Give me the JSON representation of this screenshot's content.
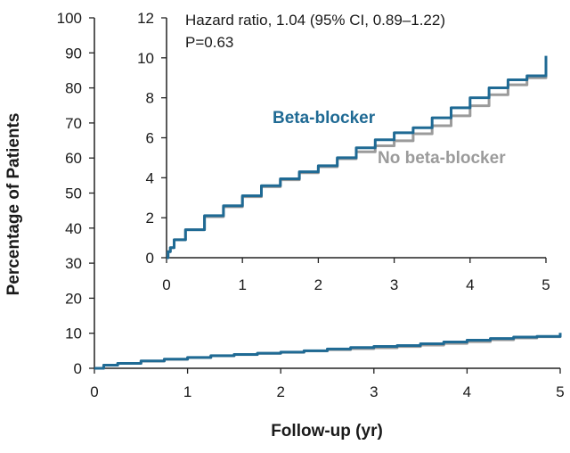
{
  "colors": {
    "beta_blocker": "#1f6a94",
    "no_beta_blocker": "#9b9b9b",
    "axis": "#222222"
  },
  "chart_data": [
    {
      "id": "main",
      "type": "line",
      "xlabel": "Follow-up (yr)",
      "ylabel": "Percentage of Patients",
      "xlim": [
        0,
        5
      ],
      "ylim": [
        0,
        100
      ],
      "x_ticks": [
        "0",
        "1",
        "2",
        "3",
        "4",
        "5"
      ],
      "y_ticks": [
        "0",
        "10",
        "20",
        "30",
        "40",
        "50",
        "60",
        "70",
        "80",
        "90",
        "100"
      ],
      "grid": false,
      "series": [
        {
          "key": "beta_blocker",
          "x": [
            0,
            0.1,
            0.25,
            0.5,
            0.75,
            1.0,
            1.25,
            1.5,
            1.75,
            2.0,
            2.25,
            2.5,
            2.75,
            3.0,
            3.25,
            3.5,
            3.75,
            4.0,
            4.25,
            4.5,
            4.75,
            5.0
          ],
          "y": [
            0,
            0.9,
            1.4,
            2.1,
            2.6,
            3.1,
            3.6,
            3.95,
            4.3,
            4.6,
            5.0,
            5.5,
            5.9,
            6.25,
            6.5,
            7.0,
            7.5,
            8.0,
            8.5,
            8.9,
            9.1,
            10.1
          ]
        },
        {
          "key": "no_beta_blocker",
          "x": [
            0,
            0.1,
            0.25,
            0.5,
            0.75,
            1.0,
            1.25,
            1.5,
            1.75,
            2.0,
            2.25,
            2.5,
            2.75,
            3.0,
            3.25,
            3.5,
            3.75,
            4.0,
            4.25,
            4.5,
            4.75,
            5.0
          ],
          "y": [
            0,
            0.9,
            1.4,
            2.05,
            2.55,
            3.05,
            3.55,
            3.9,
            4.25,
            4.55,
            4.95,
            5.3,
            5.6,
            5.85,
            6.2,
            6.6,
            7.1,
            7.6,
            8.15,
            8.65,
            9.0,
            10.0
          ]
        }
      ]
    },
    {
      "id": "inset",
      "type": "line",
      "xlim": [
        0,
        5
      ],
      "ylim": [
        0,
        12
      ],
      "x_ticks": [
        "0",
        "1",
        "2",
        "3",
        "4",
        "5"
      ],
      "y_ticks": [
        "0",
        "2",
        "4",
        "6",
        "8",
        "10",
        "12"
      ],
      "grid": false,
      "annotation_line1": "Hazard ratio, 1.04 (95% CI, 0.89–1.22)",
      "annotation_line2": "P=0.63",
      "series_labels": {
        "beta_blocker": "Beta-blocker",
        "no_beta_blocker": "No beta-blocker"
      },
      "series": [
        {
          "key": "beta_blocker",
          "x": [
            0,
            0.02,
            0.05,
            0.1,
            0.25,
            0.5,
            0.75,
            1.0,
            1.25,
            1.5,
            1.75,
            2.0,
            2.25,
            2.5,
            2.75,
            3.0,
            3.25,
            3.5,
            3.75,
            4.0,
            4.25,
            4.5,
            4.75,
            5.0
          ],
          "y": [
            0,
            0.3,
            0.5,
            0.9,
            1.4,
            2.1,
            2.6,
            3.1,
            3.6,
            3.95,
            4.3,
            4.6,
            5.0,
            5.5,
            5.9,
            6.25,
            6.5,
            7.0,
            7.5,
            8.0,
            8.5,
            8.9,
            9.1,
            10.1
          ]
        },
        {
          "key": "no_beta_blocker",
          "x": [
            0,
            0.02,
            0.05,
            0.1,
            0.25,
            0.5,
            0.75,
            1.0,
            1.25,
            1.5,
            1.75,
            2.0,
            2.25,
            2.5,
            2.75,
            3.0,
            3.25,
            3.5,
            3.75,
            4.0,
            4.25,
            4.5,
            4.75,
            5.0
          ],
          "y": [
            0,
            0.3,
            0.5,
            0.9,
            1.4,
            2.05,
            2.55,
            3.05,
            3.55,
            3.9,
            4.25,
            4.55,
            4.95,
            5.3,
            5.6,
            5.85,
            6.2,
            6.6,
            7.1,
            7.6,
            8.15,
            8.65,
            9.0,
            10.0
          ]
        }
      ]
    }
  ]
}
